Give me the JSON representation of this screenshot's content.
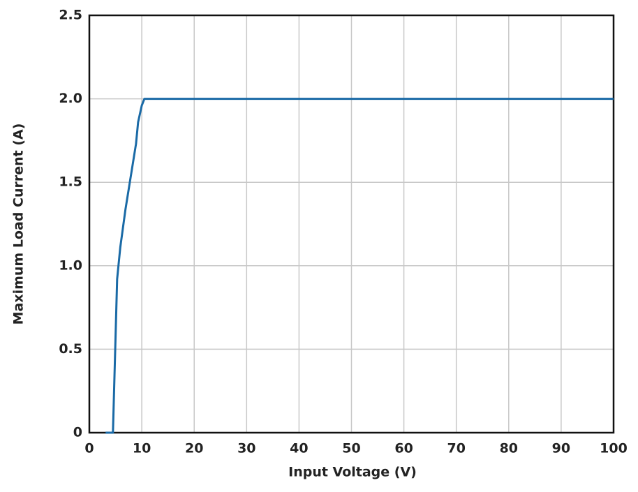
{
  "chart_data": {
    "type": "line",
    "xlabel": "Input Voltage (V)",
    "ylabel": "Maximum Load Current (A)",
    "x": [
      3.1,
      4.5,
      5.3,
      5.9,
      6.9,
      8.9,
      9.3,
      10,
      10.5,
      100
    ],
    "values": [
      0,
      0,
      0.92,
      1.11,
      1.34,
      1.73,
      1.86,
      1.96,
      2.0,
      2.0
    ],
    "color": "#1a6aa6",
    "xlim": [
      0,
      100
    ],
    "xticks": [
      0,
      10,
      20,
      30,
      40,
      50,
      60,
      70,
      80,
      90,
      100
    ],
    "ylim": [
      0,
      2.5
    ],
    "yticks": [
      0,
      0.5,
      {
        "value": 1,
        "label": "1.0"
      },
      1.5,
      {
        "value": 2,
        "label": "2.0"
      },
      2.5
    ],
    "grid": true
  }
}
